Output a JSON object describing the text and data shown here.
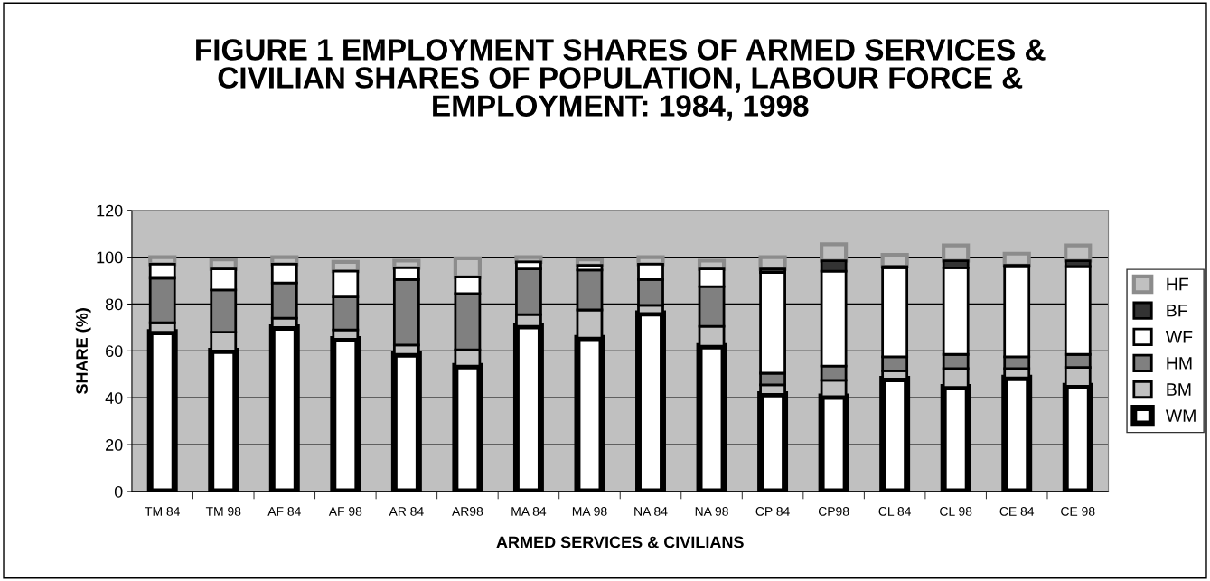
{
  "chart_data": {
    "type": "bar",
    "stacked": true,
    "title": "FIGURE 1 EMPLOYMENT SHARES OF ARMED SERVICES &\nCIVILIAN SHARES OF POPULATION, LABOUR FORCE &\nEMPLOYMENT: 1984, 1998",
    "xlabel": "ARMED SERVICES & CIVILIANS",
    "ylabel": "SHARE (%)",
    "categories": [
      "TM 84",
      "TM 98",
      "AF 84",
      "AF 98",
      "AR 84",
      "AR98",
      "MA 84",
      "MA 98",
      "NA 84",
      "NA 98",
      "CP 84",
      "CP98",
      "CL 84",
      "CL 98",
      "CE 84",
      "CE 98"
    ],
    "series": [
      {
        "name": "WM",
        "color": "#ffffff",
        "values": [
          68,
          60,
          70,
          65,
          58.5,
          53.5,
          70.5,
          65.5,
          76,
          62,
          41.5,
          40.5,
          48,
          44.5,
          48.5,
          45
        ]
      },
      {
        "name": "BM",
        "color": "#c0c0c0",
        "values": [
          4,
          8,
          4,
          4,
          4,
          7,
          5,
          12,
          3.5,
          8.5,
          4,
          7,
          3.5,
          8,
          4,
          8
        ]
      },
      {
        "name": "HM",
        "color": "#808080",
        "values": [
          19,
          18,
          15,
          14,
          28,
          24,
          19.5,
          17,
          11,
          17,
          5,
          6,
          6,
          6,
          5,
          5.5
        ]
      },
      {
        "name": "WF",
        "color": "#ffffff",
        "values": [
          6,
          9,
          8,
          11,
          5,
          7,
          3,
          2,
          6.5,
          7.5,
          43,
          40.5,
          38,
          37,
          38.5,
          37.5
        ]
      },
      {
        "name": "BF",
        "color": "#333333",
        "values": [
          null,
          null,
          null,
          null,
          null,
          null,
          null,
          null,
          null,
          null,
          1.5,
          4.5,
          0.5,
          3,
          0.5,
          2.5
        ]
      },
      {
        "name": "HF",
        "color": "#c0c0c0",
        "values": [
          3,
          4,
          3,
          4,
          3,
          8,
          2,
          2.5,
          3,
          3.5,
          5,
          7,
          5,
          6.5,
          5,
          6.5
        ]
      }
    ],
    "ylim": [
      0,
      120
    ],
    "yticks": [
      0,
      20,
      40,
      60,
      80,
      100,
      120
    ],
    "grid": "y",
    "legend": "right"
  }
}
